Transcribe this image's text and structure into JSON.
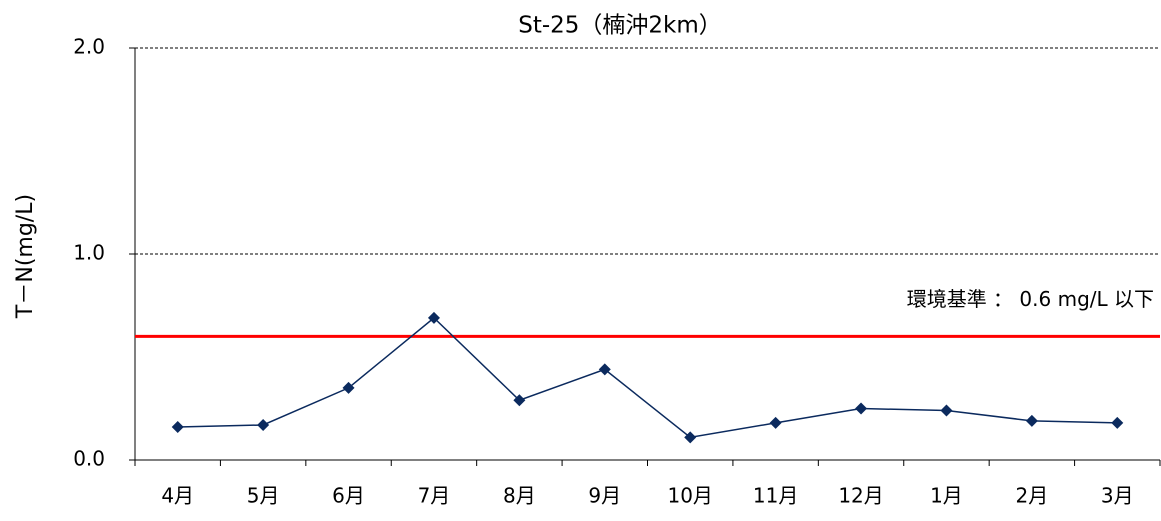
{
  "chart_data": {
    "type": "line",
    "title": "St-25（楠沖2km）",
    "y_label": "T－N(mg/L)",
    "categories": [
      "4月",
      "5月",
      "6月",
      "7月",
      "8月",
      "9月",
      "10月",
      "11月",
      "12月",
      "1月",
      "2月",
      "3月"
    ],
    "series": [
      {
        "color": "#0b2a5e",
        "values": [
          0.16,
          0.17,
          0.35,
          0.69,
          0.29,
          0.44,
          0.11,
          0.18,
          0.25,
          0.24,
          0.19,
          0.18
        ]
      }
    ],
    "ylim": [
      0,
      2
    ],
    "yticks": [
      {
        "value": 0,
        "label": "0.0"
      },
      {
        "value": 1,
        "label": "1.0"
      },
      {
        "value": 2,
        "label": "2.0"
      }
    ],
    "grid": true,
    "reference_line": {
      "value": 0.6,
      "color": "#ff0000",
      "label": "環境基準 ： 0.6 mg/L 以下"
    }
  }
}
